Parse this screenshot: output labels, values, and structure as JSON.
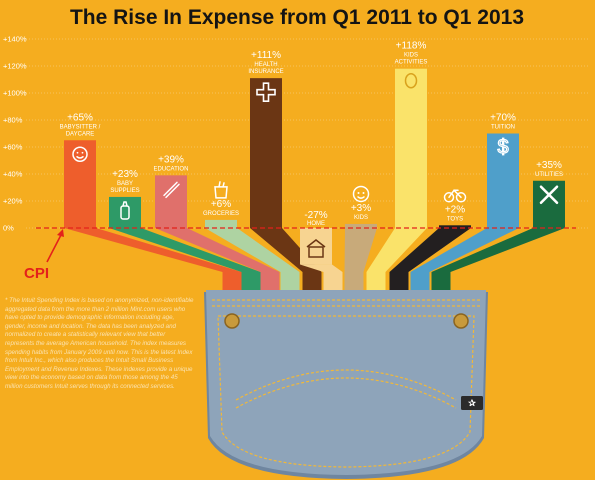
{
  "chart_data": {
    "type": "bar",
    "title": "The Rise In Expense from Q1 2011 to Q1 2013",
    "xlabel": "",
    "ylabel": "",
    "ylim": [
      -30,
      140
    ],
    "yticks": [
      "+140%",
      "+120%",
      "+100%",
      "+80%",
      "+60%",
      "+40%",
      "+20%",
      "0%"
    ],
    "grid": true,
    "legend": "none",
    "reference_line": {
      "label": "CPI",
      "value": 0,
      "color": "#e4211b"
    },
    "bars": [
      {
        "category": "BABYSITTER / DAYCARE",
        "lines": [
          "BABYSITTER /",
          "DAYCARE"
        ],
        "label": "+65%",
        "value": 65,
        "color": "#ee5e2c",
        "icon": "baby-face-icon"
      },
      {
        "category": "BABY SUPPLIES",
        "lines": [
          "BABY",
          "SUPPLIES"
        ],
        "label": "+23%",
        "value": 23,
        "color": "#2e9a67",
        "icon": "baby-bottle-icon"
      },
      {
        "category": "EDUCATION",
        "lines": [
          "EDUCATION"
        ],
        "label": "+39%",
        "value": 39,
        "color": "#e0706b",
        "icon": "pencil-ruler-icon"
      },
      {
        "category": "GROCERIES",
        "lines": [
          "GROCERIES"
        ],
        "label": "+6%",
        "value": 6,
        "color": "#aed3a2",
        "icon": "grocery-bag-icon"
      },
      {
        "category": "HEALTH INSURANCE",
        "lines": [
          "HEALTH",
          "INSURANCE"
        ],
        "label": "+111%",
        "value": 111,
        "color": "#6b3614",
        "icon": "medical-cross-icon"
      },
      {
        "category": "HOME",
        "lines": [
          "HOME"
        ],
        "label": "-27%",
        "value": -27,
        "color": "#f7d491",
        "icon": "house-icon"
      },
      {
        "category": "KIDS",
        "lines": [
          "KIDS"
        ],
        "label": "+3%",
        "value": 3,
        "color": "#c8aa7a",
        "icon": "kid-face-icon"
      },
      {
        "category": "KIDS ACTIVITIES",
        "lines": [
          "KIDS",
          "ACTIVITIES"
        ],
        "label": "+118%",
        "value": 118,
        "color": "#fae36a",
        "icon": "balloon-icon"
      },
      {
        "category": "TOYS",
        "lines": [
          "TOYS"
        ],
        "label": "+2%",
        "value": 2,
        "color": "#231f20",
        "icon": "bicycle-icon"
      },
      {
        "category": "TUITION",
        "lines": [
          "TUITION"
        ],
        "label": "+70%",
        "value": 70,
        "color": "#4f9fca",
        "icon": "dollar-sign-icon"
      },
      {
        "category": "UTILITIES",
        "lines": [
          "UTILITIES"
        ],
        "label": "+35%",
        "value": 35,
        "color": "#1a6b3e",
        "icon": "wrench-screwdriver-icon"
      }
    ]
  },
  "footnote": "* The Intuit Spending Index is based on anonymized, non-identifiable aggregated data from the more than 2 million Mint.com users who have opted to provide demographic information including age, gender, income and location. The data has been analyzed and normalized to create a statistically relevant view that better represents the average American household. The index measures spending habits from January 2009 until now. This is the latest Index from Intuit Inc., which also produces the Intuit Small Business Employment and Revenue Indexes. These indexes provide a unique view into the economy based on data from those among the 45 million customers Intuit serves through its connected services.",
  "colors": {
    "background": "#f5ad1f",
    "denim": "#8ea4ba",
    "denim_dark": "#6f86a0",
    "stitch": "#f0b83a",
    "cpi": "#e4211b"
  }
}
